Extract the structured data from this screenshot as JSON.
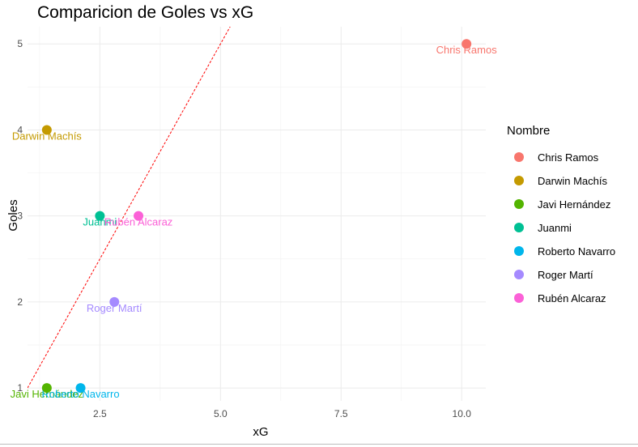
{
  "chart_data": {
    "type": "scatter",
    "title": "Comparicion de Goles vs xG",
    "xlabel": "xG",
    "ylabel": "Goles",
    "xlim": [
      1.0,
      10.5
    ],
    "ylim": [
      0.85,
      5.2
    ],
    "xticks": [
      2.5,
      5.0,
      7.5,
      10.0
    ],
    "xtick_labels": [
      "2.5",
      "5.0",
      "7.5",
      "10.0"
    ],
    "yticks": [
      1,
      2,
      3,
      4,
      5
    ],
    "ytick_labels": [
      "1",
      "2",
      "3",
      "4",
      "5"
    ],
    "grid": true,
    "reference_line": {
      "type": "identity",
      "label": "",
      "color": "#ff0000",
      "style": "dashed"
    },
    "legend": {
      "title": "Nombre",
      "position": "right"
    },
    "points": [
      {
        "name": "Chris Ramos",
        "x": 10.1,
        "y": 5,
        "color": "#F8766D"
      },
      {
        "name": "Darwin Machís",
        "x": 1.4,
        "y": 4,
        "color": "#C49A00"
      },
      {
        "name": "Javi Hernández",
        "x": 1.4,
        "y": 1,
        "color": "#53B400"
      },
      {
        "name": "Juanmi",
        "x": 2.5,
        "y": 3,
        "color": "#00C094"
      },
      {
        "name": "Roberto Navarro",
        "x": 2.1,
        "y": 1,
        "color": "#00B6EB"
      },
      {
        "name": "Roger Martí",
        "x": 2.8,
        "y": 2,
        "color": "#A58AFF"
      },
      {
        "name": "Rubén Alcaraz",
        "x": 3.3,
        "y": 3,
        "color": "#FB61D7"
      }
    ]
  }
}
